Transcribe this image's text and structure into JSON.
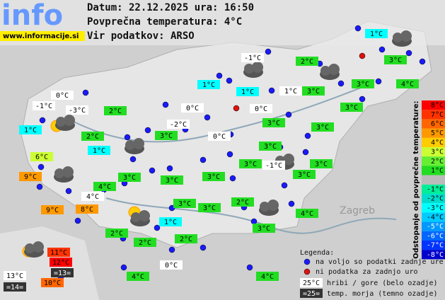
{
  "header": {
    "logo": "info",
    "url": "www.informacije.si",
    "date_line": "Datum: 22.12.2025 ura: 16:50",
    "avg_line": "Povprečna temperatura: 4°C",
    "source_line": "Vir podatkov: ARSO"
  },
  "places": [
    "Zagreb"
  ],
  "stations": [
    {
      "label": "1°C",
      "color": "#00ffff"
    },
    {
      "label": "-1°C",
      "color": "#ffffff"
    },
    {
      "label": "2°C",
      "color": "#22dd22"
    },
    {
      "label": "3°C",
      "color": "#22dd22"
    },
    {
      "label": "1°C",
      "color": "#00ffff"
    },
    {
      "label": "1°C",
      "color": "#00ffff"
    },
    {
      "label": "1°C",
      "color": "#ffffff"
    },
    {
      "label": "3°C",
      "color": "#22dd22"
    },
    {
      "label": "3°C",
      "color": "#22dd22"
    },
    {
      "label": "4°C",
      "color": "#22dd22"
    },
    {
      "label": "0°C",
      "color": "#ffffff"
    },
    {
      "label": "-1°C",
      "color": "#ffffff"
    },
    {
      "label": "-3°C",
      "color": "#ffffff"
    },
    {
      "label": "2°C",
      "color": "#22dd22"
    },
    {
      "label": "0°C",
      "color": "#ffffff"
    },
    {
      "label": "0°C",
      "color": "#ffffff"
    },
    {
      "label": "3°C",
      "color": "#22dd22"
    },
    {
      "label": "1°C",
      "color": "#00ffff"
    },
    {
      "label": "3°C",
      "color": "#22dd22"
    },
    {
      "label": "3°C",
      "color": "#22dd22"
    },
    {
      "label": "-2°C",
      "color": "#ffffff"
    },
    {
      "label": "2°C",
      "color": "#22dd22"
    },
    {
      "label": "3°C",
      "color": "#22dd22"
    },
    {
      "label": "0°C",
      "color": "#ffffff"
    },
    {
      "label": "3°C",
      "color": "#22dd22"
    },
    {
      "label": "1°C",
      "color": "#00ffff"
    },
    {
      "label": "6°C",
      "color": "#ccff33"
    },
    {
      "label": "3°C",
      "color": "#22dd22"
    },
    {
      "label": "-1°C",
      "color": "#ffffff"
    },
    {
      "label": "3°C",
      "color": "#22dd22"
    },
    {
      "label": "3°C",
      "color": "#22dd22"
    },
    {
      "label": "9°C",
      "color": "#ff9900"
    },
    {
      "label": "3°C",
      "color": "#22dd22"
    },
    {
      "label": "3°C",
      "color": "#22dd22"
    },
    {
      "label": "3°C",
      "color": "#22dd22"
    },
    {
      "label": "4°C",
      "color": "#22dd22"
    },
    {
      "label": "4°C",
      "color": "#ffffff"
    },
    {
      "label": "3°C",
      "color": "#22dd22"
    },
    {
      "label": "2°C",
      "color": "#22dd22"
    },
    {
      "label": "3°C",
      "color": "#22dd22"
    },
    {
      "label": "9°C",
      "color": "#ff9900"
    },
    {
      "label": "8°C",
      "color": "#ff9900"
    },
    {
      "label": "4°C",
      "color": "#22dd22"
    },
    {
      "label": "1°C",
      "color": "#00ffff"
    },
    {
      "label": "2°C",
      "color": "#22dd22"
    },
    {
      "label": "3°C",
      "color": "#22dd22"
    },
    {
      "label": "2°C",
      "color": "#22dd22"
    },
    {
      "label": "2°C",
      "color": "#22dd22"
    },
    {
      "label": "0°C",
      "color": "#ffffff"
    },
    {
      "label": "4°C",
      "color": "#22dd22"
    },
    {
      "label": "4°C",
      "color": "#22dd22"
    },
    {
      "label": "11°C",
      "color": "#ff3300"
    },
    {
      "label": "12°C",
      "color": "#ff0000"
    },
    {
      "label": "=13=",
      "color": "#333333"
    },
    {
      "label": "13°C",
      "color": "#ffffff"
    },
    {
      "label": "=14=",
      "color": "#333333"
    },
    {
      "label": "10°C",
      "color": "#ff6600"
    }
  ],
  "scale": {
    "title": "Odstopanje od povprečne temperature:",
    "items": [
      {
        "label": "8°C",
        "color": "#ff0000"
      },
      {
        "label": "7°C",
        "color": "#ff3300"
      },
      {
        "label": "6°C",
        "color": "#ff6600"
      },
      {
        "label": "5°C",
        "color": "#ff9900"
      },
      {
        "label": "4°C",
        "color": "#ffcc00"
      },
      {
        "label": "3°C",
        "color": "#ccff33"
      },
      {
        "label": "2°C",
        "color": "#66ee33"
      },
      {
        "label": "1°C",
        "color": "#22dd22"
      },
      {
        "label": "-1°C",
        "color": "#00ee99"
      },
      {
        "label": "-2°C",
        "color": "#00ddcc"
      },
      {
        "label": "-3°C",
        "color": "#00ffff"
      },
      {
        "label": "-4°C",
        "color": "#00ccff"
      },
      {
        "label": "-5°C",
        "color": "#0099ff"
      },
      {
        "label": "-6°C",
        "color": "#0066ff"
      },
      {
        "label": "-7°C",
        "color": "#0033ff"
      },
      {
        "label": "-8°C",
        "color": "#0000cc"
      }
    ]
  },
  "legend": {
    "title": "Legenda:",
    "available": "na voljo so podatki zadnje ure",
    "missing": "ni podatka za zadnjo uro",
    "mountain_sample": "25°C",
    "mountain_text": "hribi / gore (belo ozadje)",
    "sea_sample": "=25=",
    "sea_text": "temp. morja (temno ozadje)"
  }
}
